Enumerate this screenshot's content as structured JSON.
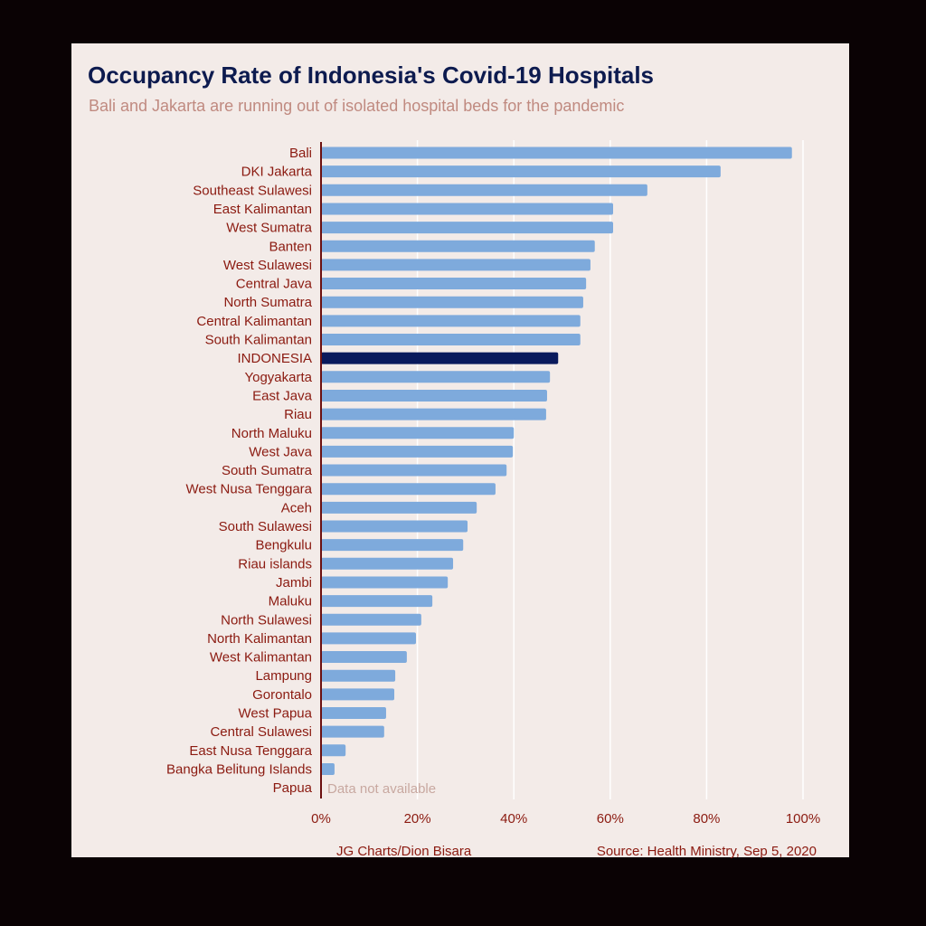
{
  "chart_data": {
    "type": "bar",
    "orientation": "horizontal",
    "title": "Occupancy Rate of Indonesia's Covid-19 Hospitals",
    "subtitle": "Bali and Jakarta are running out of isolated hospital beds for the pandemic",
    "categories": [
      "Bali",
      "DKI Jakarta",
      "Southeast Sulawesi",
      "East Kalimantan",
      "West Sumatra",
      "Banten",
      "West Sulawesi",
      "Central Java",
      "North Sumatra",
      "Central Kalimantan",
      "South Kalimantan",
      "INDONESIA",
      "Yogyakarta",
      "East Java",
      "Riau",
      "North Maluku",
      "West Java",
      "South Sumatra",
      "West Nusa Tenggara",
      "Aceh",
      "South Sulawesi",
      "Bengkulu",
      "Riau islands",
      "Jambi",
      "Maluku",
      "North Sulawesi",
      "North Kalimantan",
      "West Kalimantan",
      "Lampung",
      "Gorontalo",
      "West Papua",
      "Central Sulawesi",
      "East Nusa Tenggara",
      "Bangka Belitung Islands",
      "Papua"
    ],
    "values": [
      97.7,
      82.9,
      67.7,
      60.6,
      60.6,
      56.8,
      55.9,
      55.0,
      54.4,
      53.8,
      53.8,
      49.2,
      47.5,
      46.9,
      46.7,
      40.0,
      39.8,
      38.5,
      36.2,
      32.3,
      30.4,
      29.5,
      27.4,
      26.3,
      23.1,
      20.8,
      19.7,
      17.8,
      15.4,
      15.2,
      13.5,
      13.1,
      5.1,
      2.8,
      null
    ],
    "highlight": "INDONESIA",
    "na_label": "Data not available",
    "xlim": [
      0,
      100
    ],
    "xticks": [
      "0%",
      "20%",
      "40%",
      "60%",
      "80%",
      "100%"
    ],
    "xtick_values": [
      0,
      20,
      40,
      60,
      80,
      100
    ],
    "colors": {
      "bar": "#7eaadc",
      "highlight": "#0a1a5c",
      "axis": "#6b1010",
      "grid": "#ffffff"
    },
    "credit": "JG Charts/Dion Bisara",
    "source": "Source: Health Ministry, Sep 5, 2020"
  }
}
